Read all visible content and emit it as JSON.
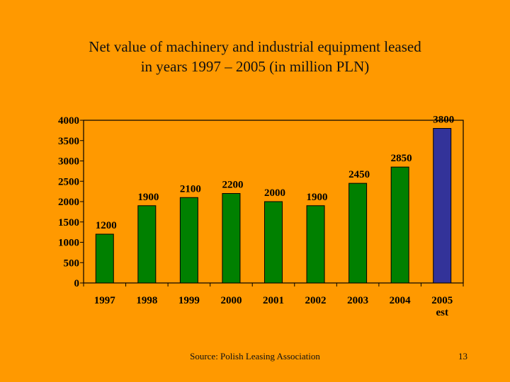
{
  "slide": {
    "title_line1": "Net value of machinery and industrial equipment leased",
    "title_line2": "in years 1997 – 2005 (in million PLN)",
    "source": "Source: Polish Leasing Association",
    "page_number": "13"
  },
  "colors": {
    "background": "#FF9900",
    "bar_actual": "#008000",
    "bar_estimate": "#333399",
    "plot_bg": "#FF9900"
  },
  "chart_data": {
    "type": "bar",
    "title": "Net value of machinery and industrial equipment leased in years 1997 – 2005 (in million PLN)",
    "categories": [
      "1997",
      "1998",
      "1999",
      "2000",
      "2001",
      "2002",
      "2003",
      "2004",
      "2005 est"
    ],
    "category_lines": [
      [
        "1997"
      ],
      [
        "1998"
      ],
      [
        "1999"
      ],
      [
        "2000"
      ],
      [
        "2001"
      ],
      [
        "2002"
      ],
      [
        "2003"
      ],
      [
        "2004"
      ],
      [
        "2005",
        "est"
      ]
    ],
    "values": [
      1200,
      1900,
      2100,
      2200,
      2000,
      1900,
      2450,
      2850,
      3800
    ],
    "estimate_flags": [
      false,
      false,
      false,
      false,
      false,
      false,
      false,
      false,
      true
    ],
    "yticks": [
      0,
      500,
      1000,
      1500,
      2000,
      2500,
      3000,
      3500,
      4000
    ],
    "ylim": [
      0,
      4000
    ],
    "xlabel": "",
    "ylabel": "",
    "grid": false,
    "legend": "none"
  }
}
